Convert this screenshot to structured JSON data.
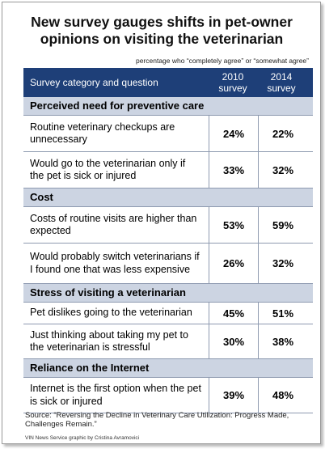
{
  "header": {
    "title": "New survey gauges shifts in pet-owner opinions on visiting the veterinarian",
    "subtitle": "percentage who “completely agree” or “somewhat agree”"
  },
  "table": {
    "columns": [
      "Survey category and question",
      "2010 survey",
      "2014 survey"
    ],
    "sections": [
      {
        "title": "Perceived need for preventive care",
        "rows": [
          [
            "Routine veterinary checkups are unnecessary",
            "24%",
            "22%"
          ],
          [
            "Would go to the veterinarian only if the pet is sick or injured",
            "33%",
            "32%"
          ]
        ]
      },
      {
        "title": "Cost",
        "rows": [
          [
            "Costs of routine visits are higher than expected",
            "53%",
            "59%"
          ],
          [
            "Would probably switch veterinarians if I found one that was less expensive",
            "26%",
            "32%"
          ]
        ]
      },
      {
        "title": "Stress of visiting a veterinarian",
        "rows": [
          [
            "Pet dislikes going to the veterinarian",
            "45%",
            "51%"
          ],
          [
            "Just thinking about taking my pet to the veterinarian is stressful",
            "30%",
            "38%"
          ]
        ]
      },
      {
        "title": "Reliance on the Internet",
        "rows": [
          [
            "Internet is the first option when the pet is sick or injured",
            "39%",
            "48%"
          ]
        ]
      }
    ]
  },
  "footer": {
    "source": "Source: “Reversing the Decline in Veterinary Care Utilization: Progress Made, Challenges Remain.”",
    "credit": "VIN News Service graphic by Cristina Avramovici"
  }
}
